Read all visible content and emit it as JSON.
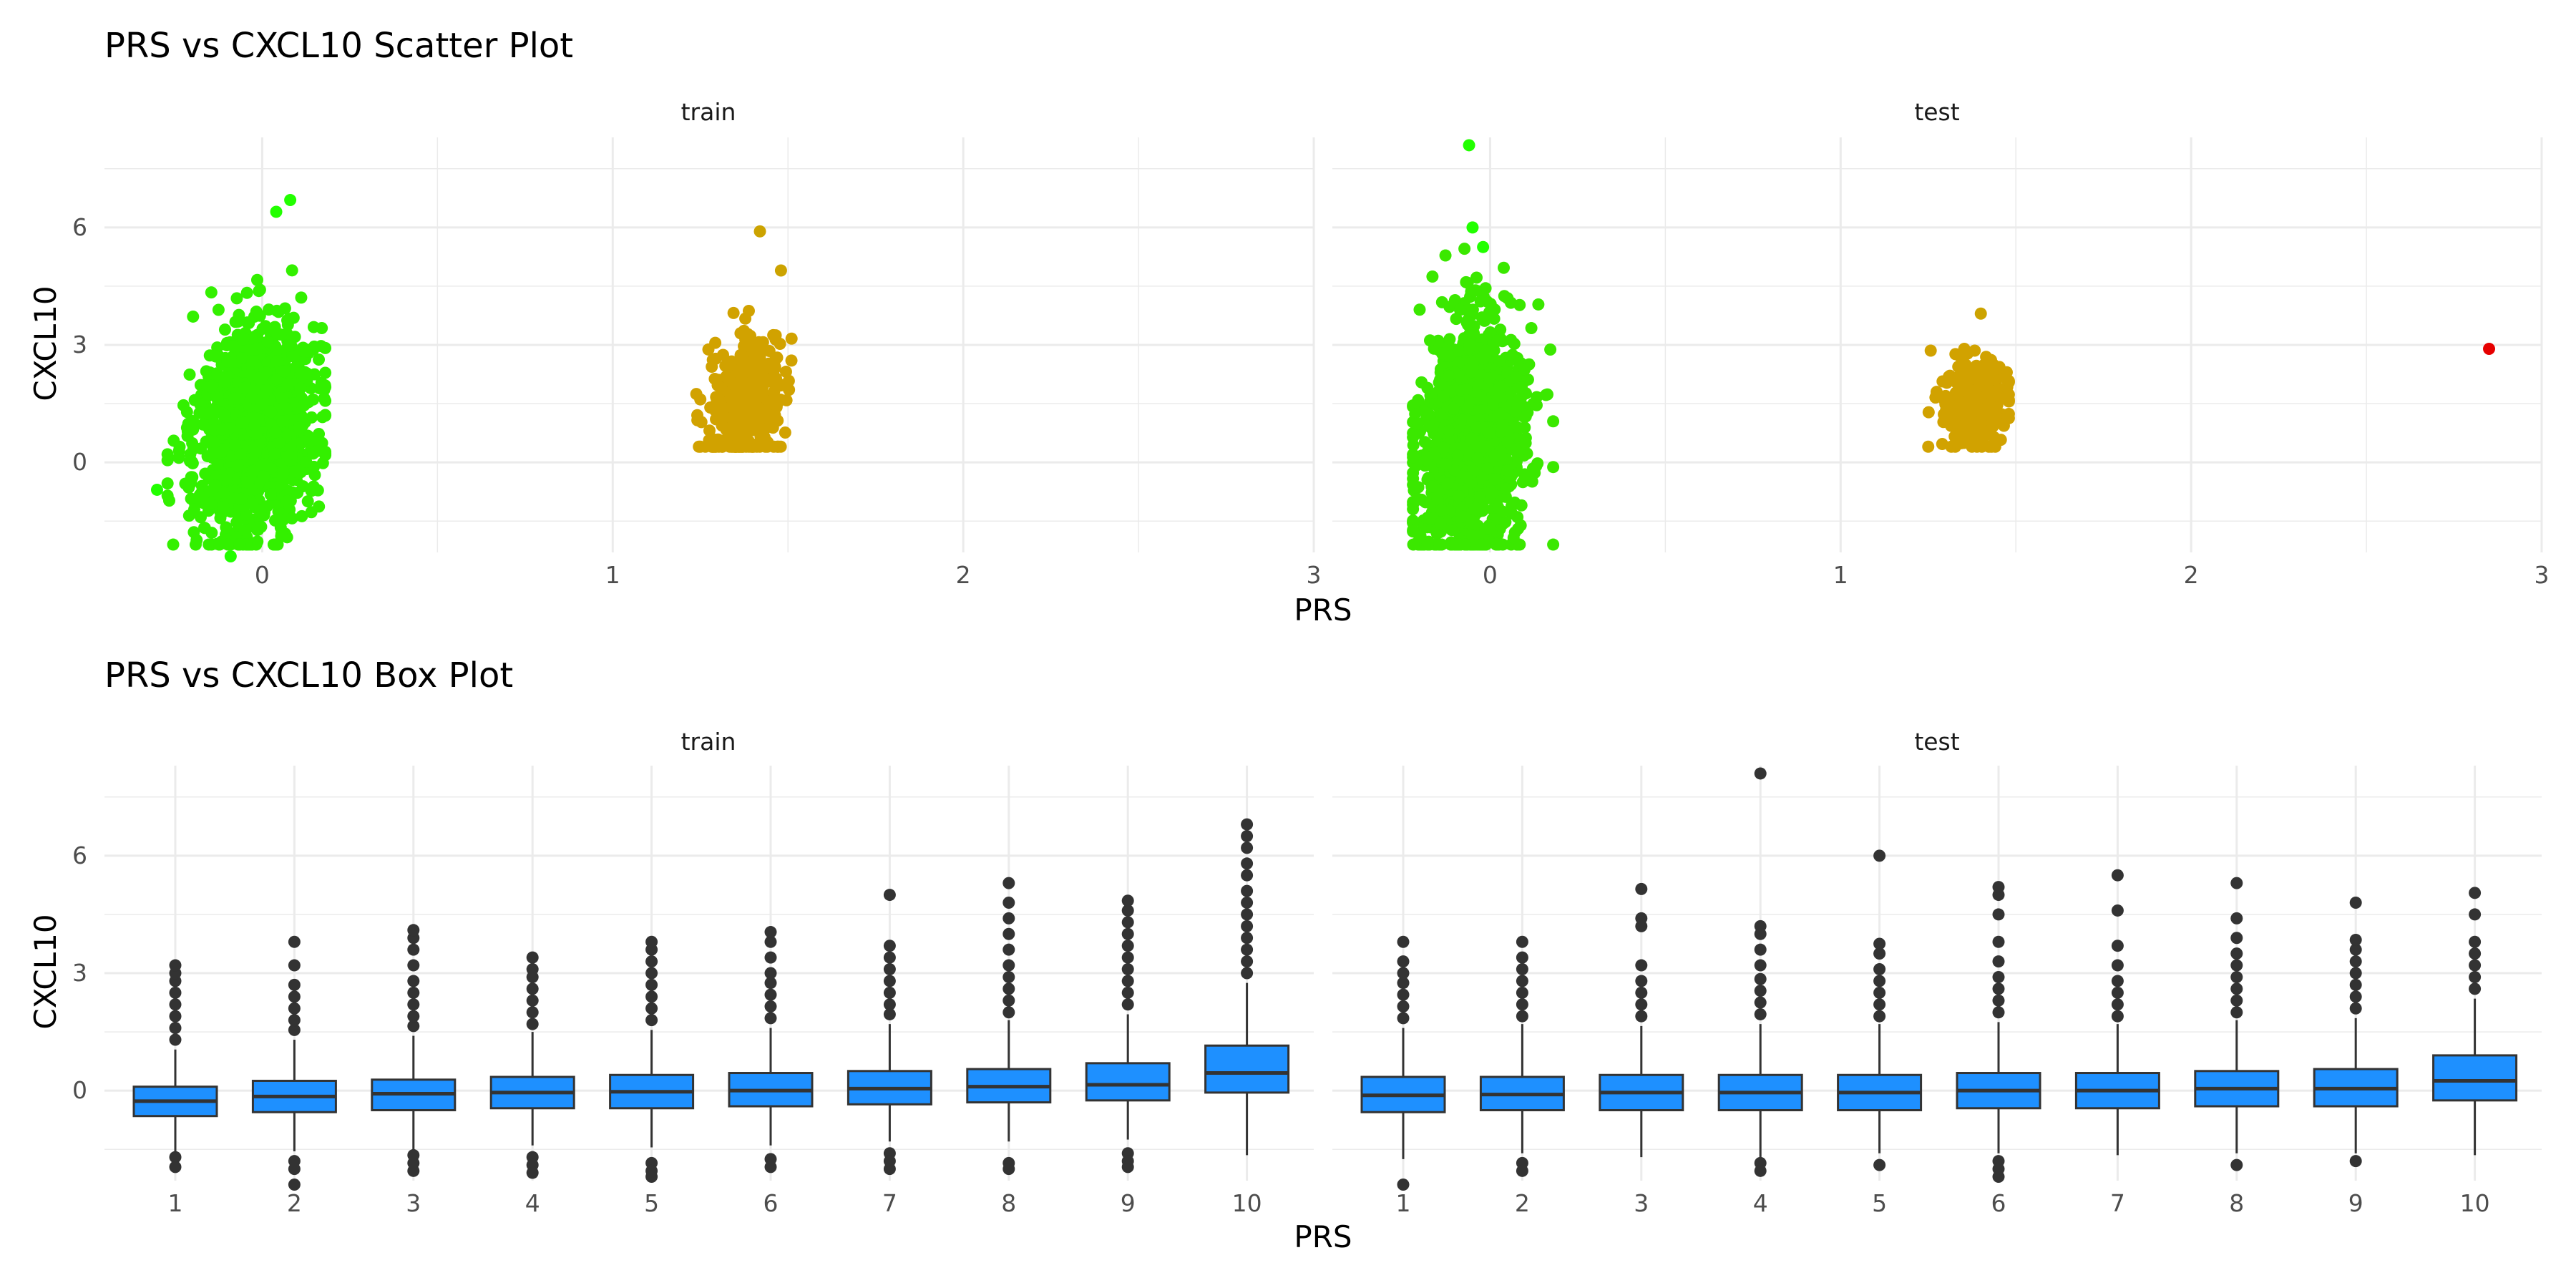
{
  "chart_data": [
    {
      "type": "scatter",
      "title": "PRS vs CXCL10 Scatter Plot",
      "xlabel": "PRS",
      "ylabel": "CXCL10",
      "facets": [
        "train",
        "test"
      ],
      "xlim": [
        -0.45,
        3.0
      ],
      "ylim": [
        -2.3,
        8.3
      ],
      "x_ticks": [
        0,
        1,
        2,
        3
      ],
      "y_ticks": [
        0,
        3,
        6
      ],
      "grid": true,
      "color_scale": {
        "low": "#22ff00",
        "mid": "#cca300",
        "high": "#e60000"
      },
      "series": [
        {
          "facet": "train",
          "clusters": [
            {
              "x_center": -0.02,
              "y_center": 0.8,
              "x_min": -0.3,
              "x_max": 0.2,
              "y_min": -2.4,
              "y_max": 6.7,
              "color": "#33f000"
            },
            {
              "x_center": 1.38,
              "y_center": 1.5,
              "x_min": 1.2,
              "x_max": 1.55,
              "y_min": 0.1,
              "y_max": 5.9,
              "color": "#d1a200"
            }
          ],
          "outliers": [
            [
              0.08,
              6.7
            ],
            [
              0.04,
              6.4
            ],
            [
              1.42,
              5.9
            ],
            [
              1.48,
              4.9
            ],
            [
              -0.3,
              -0.7
            ],
            [
              -0.09,
              -2.4
            ]
          ]
        },
        {
          "facet": "test",
          "clusters": [
            {
              "x_center": -0.05,
              "y_center": 0.5,
              "x_min": -0.25,
              "x_max": 0.2,
              "y_min": -2.4,
              "y_max": 8.1,
              "color": "#3be800"
            },
            {
              "x_center": 1.38,
              "y_center": 1.5,
              "x_min": 1.22,
              "x_max": 1.5,
              "y_min": 0.1,
              "y_max": 3.8,
              "color": "#d1a200"
            }
          ],
          "outliers": [
            [
              -0.06,
              8.1
            ],
            [
              -0.05,
              6.0
            ],
            [
              -0.02,
              5.5
            ],
            [
              1.4,
              3.8
            ],
            [
              2.85,
              2.9
            ]
          ]
        }
      ]
    },
    {
      "type": "box",
      "title": "PRS vs CXCL10 Box Plot",
      "xlabel": "PRS",
      "ylabel": "CXCL10",
      "facets": [
        "train",
        "test"
      ],
      "categories": [
        "1",
        "2",
        "3",
        "4",
        "5",
        "6",
        "7",
        "8",
        "9",
        "10"
      ],
      "ylim": [
        -2.3,
        8.3
      ],
      "y_ticks": [
        0,
        3,
        6
      ],
      "grid": true,
      "box_color": "#1e90ff",
      "series": [
        {
          "facet": "train",
          "boxes": [
            {
              "q1": -0.65,
              "median": -0.27,
              "q3": 0.1,
              "wmin": -1.55,
              "wmax": 1.05,
              "outliers": [
                1.3,
                1.6,
                1.9,
                2.2,
                2.5,
                2.8,
                3.0,
                3.2,
                -1.7,
                -1.95
              ]
            },
            {
              "q1": -0.55,
              "median": -0.15,
              "q3": 0.25,
              "wmin": -1.55,
              "wmax": 1.3,
              "outliers": [
                1.55,
                1.8,
                2.1,
                2.4,
                2.7,
                3.2,
                3.8,
                -1.8,
                -2.0,
                -2.4
              ]
            },
            {
              "q1": -0.5,
              "median": -0.08,
              "q3": 0.28,
              "wmin": -1.5,
              "wmax": 1.4,
              "outliers": [
                1.65,
                1.9,
                2.2,
                2.5,
                2.8,
                3.2,
                3.6,
                3.9,
                4.1,
                -1.65,
                -1.85,
                -2.05
              ]
            },
            {
              "q1": -0.45,
              "median": -0.05,
              "q3": 0.35,
              "wmin": -1.4,
              "wmax": 1.5,
              "outliers": [
                1.7,
                2.0,
                2.3,
                2.6,
                2.9,
                3.1,
                3.4,
                -1.7,
                -1.9,
                -2.1
              ]
            },
            {
              "q1": -0.45,
              "median": -0.03,
              "q3": 0.4,
              "wmin": -1.45,
              "wmax": 1.55,
              "outliers": [
                1.8,
                2.1,
                2.4,
                2.7,
                3.0,
                3.3,
                3.6,
                3.8,
                -1.85,
                -2.05,
                -2.2
              ]
            },
            {
              "q1": -0.4,
              "median": 0.0,
              "q3": 0.45,
              "wmin": -1.4,
              "wmax": 1.6,
              "outliers": [
                1.85,
                2.15,
                2.45,
                2.75,
                3.0,
                3.4,
                3.8,
                4.05,
                -1.75,
                -1.95
              ]
            },
            {
              "q1": -0.35,
              "median": 0.05,
              "q3": 0.5,
              "wmin": -1.3,
              "wmax": 1.7,
              "outliers": [
                1.95,
                2.2,
                2.5,
                2.8,
                3.1,
                3.4,
                3.7,
                5.0,
                -1.6,
                -1.8,
                -2.0
              ]
            },
            {
              "q1": -0.3,
              "median": 0.1,
              "q3": 0.55,
              "wmin": -1.3,
              "wmax": 1.8,
              "outliers": [
                2.0,
                2.3,
                2.6,
                2.9,
                3.2,
                3.6,
                4.0,
                4.4,
                4.8,
                5.3,
                -1.85,
                -2.0
              ]
            },
            {
              "q1": -0.25,
              "median": 0.15,
              "q3": 0.7,
              "wmin": -1.25,
              "wmax": 1.95,
              "outliers": [
                2.2,
                2.5,
                2.8,
                3.1,
                3.4,
                3.7,
                4.0,
                4.3,
                4.6,
                4.85,
                -1.6,
                -1.8,
                -1.95
              ]
            },
            {
              "q1": -0.05,
              "median": 0.45,
              "q3": 1.15,
              "wmin": -1.65,
              "wmax": 2.75,
              "outliers": [
                3.0,
                3.3,
                3.6,
                3.9,
                4.2,
                4.5,
                4.8,
                5.1,
                5.5,
                5.8,
                6.2,
                6.5,
                6.8
              ]
            }
          ]
        },
        {
          "facet": "test",
          "boxes": [
            {
              "q1": -0.55,
              "median": -0.12,
              "q3": 0.35,
              "wmin": -1.75,
              "wmax": 1.6,
              "outliers": [
                1.85,
                2.15,
                2.45,
                2.75,
                3.0,
                3.3,
                3.8,
                -2.4
              ]
            },
            {
              "q1": -0.5,
              "median": -0.1,
              "q3": 0.35,
              "wmin": -1.6,
              "wmax": 1.7,
              "outliers": [
                1.9,
                2.2,
                2.5,
                2.8,
                3.1,
                3.4,
                3.8,
                -1.85,
                -2.05
              ]
            },
            {
              "q1": -0.5,
              "median": -0.05,
              "q3": 0.4,
              "wmin": -1.7,
              "wmax": 1.65,
              "outliers": [
                1.9,
                2.2,
                2.5,
                2.8,
                3.2,
                4.2,
                4.4,
                5.15
              ]
            },
            {
              "q1": -0.5,
              "median": -0.05,
              "q3": 0.4,
              "wmin": -1.7,
              "wmax": 1.7,
              "outliers": [
                1.95,
                2.25,
                2.55,
                2.85,
                3.2,
                3.6,
                4.0,
                4.2,
                8.1,
                -1.85,
                -2.05
              ]
            },
            {
              "q1": -0.5,
              "median": -0.05,
              "q3": 0.4,
              "wmin": -1.6,
              "wmax": 1.7,
              "outliers": [
                1.9,
                2.2,
                2.5,
                2.8,
                3.1,
                3.5,
                3.75,
                6.0,
                -1.9
              ]
            },
            {
              "q1": -0.45,
              "median": 0.0,
              "q3": 0.45,
              "wmin": -1.6,
              "wmax": 1.75,
              "outliers": [
                2.0,
                2.3,
                2.6,
                2.9,
                3.3,
                3.8,
                4.5,
                5.0,
                5.2,
                -1.8,
                -2.0,
                -2.2
              ]
            },
            {
              "q1": -0.45,
              "median": 0.0,
              "q3": 0.45,
              "wmin": -1.65,
              "wmax": 1.7,
              "outliers": [
                1.9,
                2.2,
                2.5,
                2.8,
                3.2,
                3.7,
                4.6,
                5.5
              ]
            },
            {
              "q1": -0.4,
              "median": 0.05,
              "q3": 0.5,
              "wmin": -1.6,
              "wmax": 1.8,
              "outliers": [
                2.0,
                2.3,
                2.6,
                2.9,
                3.2,
                3.5,
                3.9,
                4.4,
                5.3,
                -1.9
              ]
            },
            {
              "q1": -0.4,
              "median": 0.05,
              "q3": 0.55,
              "wmin": -1.6,
              "wmax": 1.85,
              "outliers": [
                2.1,
                2.4,
                2.7,
                3.0,
                3.3,
                3.6,
                3.85,
                4.8,
                -1.8
              ]
            },
            {
              "q1": -0.25,
              "median": 0.25,
              "q3": 0.9,
              "wmin": -1.65,
              "wmax": 2.35,
              "outliers": [
                2.6,
                2.9,
                3.2,
                3.5,
                3.8,
                4.5,
                5.05
              ]
            }
          ]
        }
      ]
    }
  ]
}
